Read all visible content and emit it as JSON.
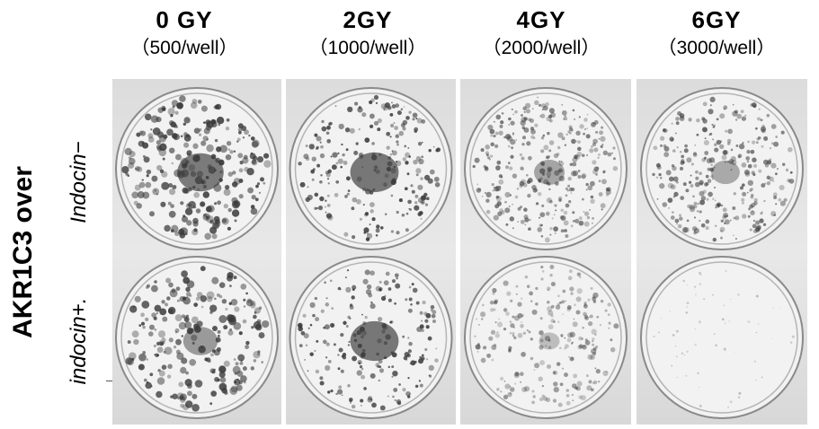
{
  "columns": [
    {
      "title": "0 GY",
      "subtitle": "（500/well）"
    },
    {
      "title": "2GY",
      "subtitle": "（1000/well）"
    },
    {
      "title": "4GY",
      "subtitle": "（2000/well）"
    },
    {
      "title": "6GY",
      "subtitle": "（3000/well）"
    }
  ],
  "side_label": "AKR1C3 over",
  "rows": [
    {
      "label": "Indocin−"
    },
    {
      "label": "indocin+."
    }
  ],
  "colors": {
    "colony": "#3a3a3a",
    "panel_bg": "#e0e0e0",
    "dish_rim": "#8a8a8a"
  }
}
